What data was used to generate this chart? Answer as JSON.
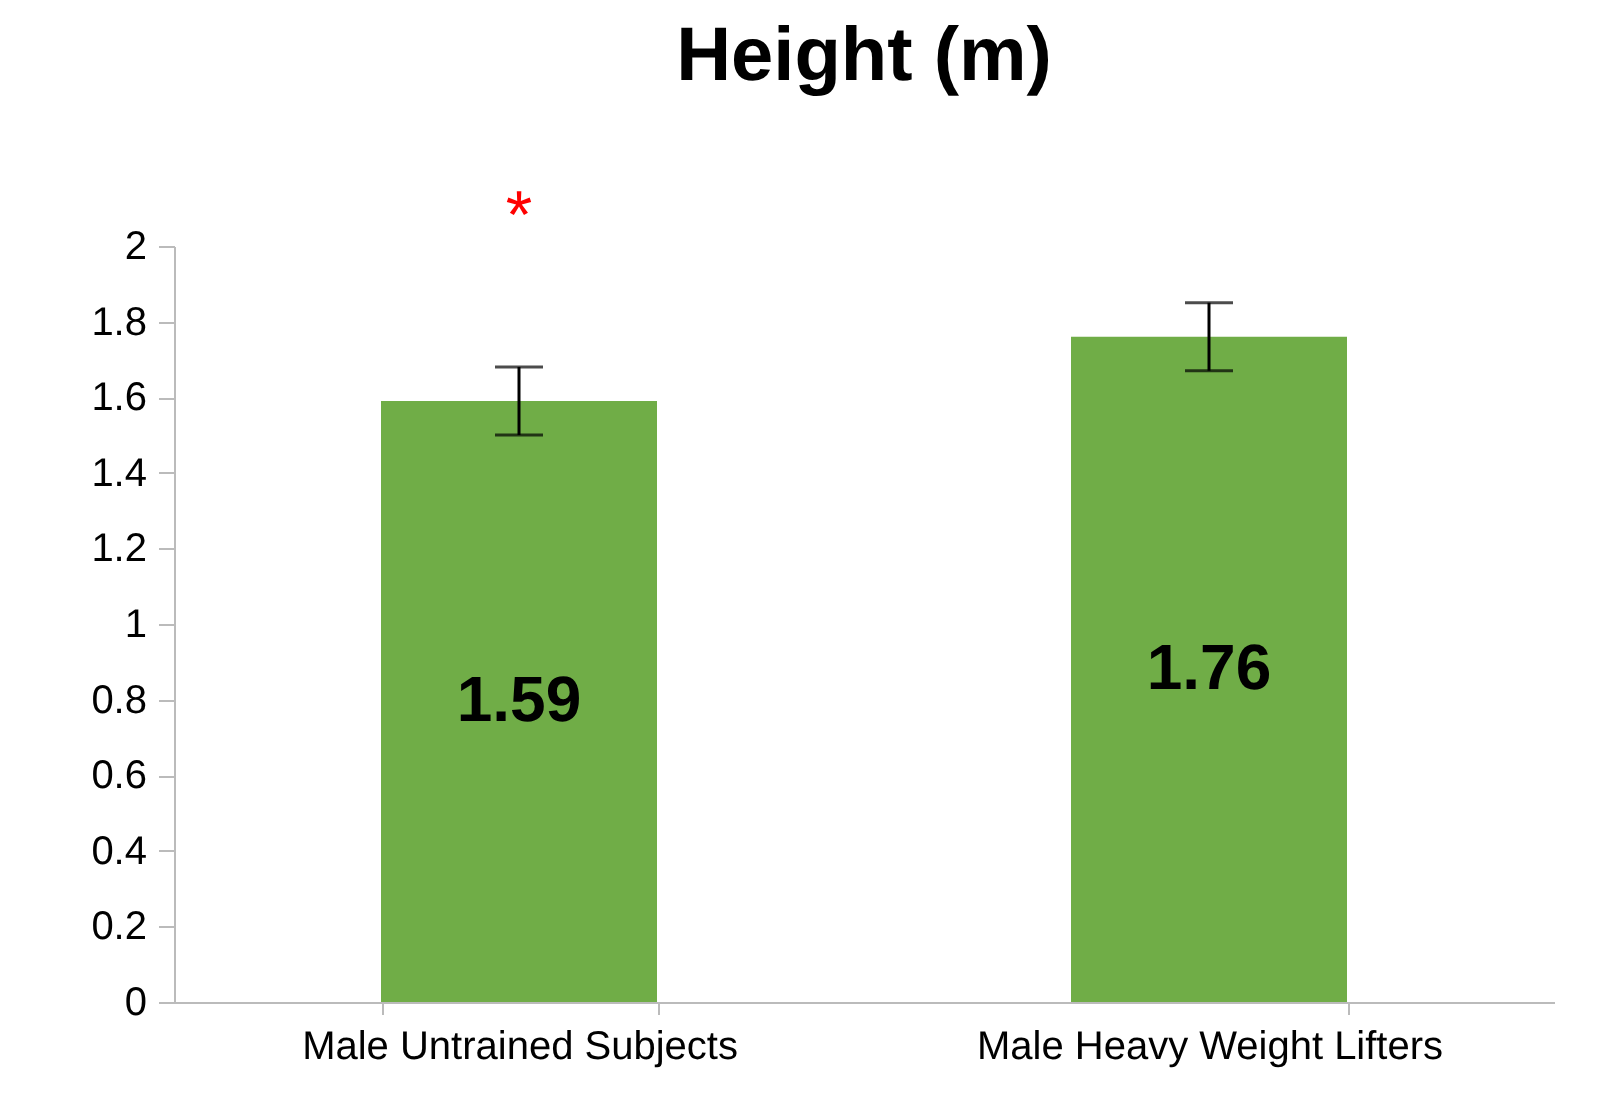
{
  "chart_data": {
    "type": "bar",
    "title": "Height (m)",
    "categories": [
      "Male Untrained Subjects",
      "Male Heavy Weight Lifters"
    ],
    "values": [
      1.59,
      1.76
    ],
    "color": "#70ad47",
    "errors": [
      0.09,
      0.09
    ],
    "ylim": [
      0,
      2
    ],
    "yticks": [
      0,
      0.2,
      0.4,
      0.6,
      0.8,
      1,
      1.2,
      1.4,
      1.6,
      1.8,
      2
    ],
    "grid": false,
    "data_labels": true,
    "annotations": [
      "*"
    ]
  }
}
